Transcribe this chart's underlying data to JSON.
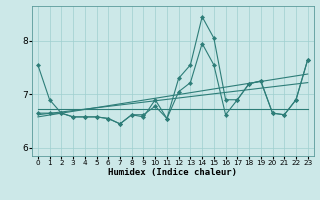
{
  "xlabel": "Humidex (Indice chaleur)",
  "xlim": [
    -0.5,
    23.5
  ],
  "ylim": [
    5.85,
    8.65
  ],
  "yticks": [
    6,
    7,
    8
  ],
  "xticks": [
    0,
    1,
    2,
    3,
    4,
    5,
    6,
    7,
    8,
    9,
    10,
    11,
    12,
    13,
    14,
    15,
    16,
    17,
    18,
    19,
    20,
    21,
    22,
    23
  ],
  "bg_color": "#cce8e8",
  "line_color": "#2d7d78",
  "grid_color": "#9fcfcf",
  "lines": [
    {
      "x": [
        0,
        1,
        2,
        3,
        4,
        5,
        6,
        7,
        8,
        9,
        10,
        11,
        12,
        13,
        14,
        15,
        16,
        17,
        18,
        19,
        20,
        21,
        22,
        23
      ],
      "y": [
        7.55,
        6.9,
        6.65,
        6.58,
        6.58,
        6.58,
        6.55,
        6.45,
        6.62,
        6.58,
        6.9,
        6.55,
        7.3,
        7.55,
        8.45,
        8.05,
        6.9,
        6.9,
        7.2,
        7.25,
        6.65,
        6.62,
        6.9,
        7.65
      ],
      "marker": true
    },
    {
      "x": [
        0,
        1,
        2,
        3,
        4,
        5,
        6,
        7,
        8,
        9,
        10,
        11,
        12,
        13,
        14,
        15,
        16,
        17,
        18,
        19,
        20,
        21,
        22,
        23
      ],
      "y": [
        6.65,
        6.65,
        6.65,
        6.58,
        6.58,
        6.58,
        6.55,
        6.45,
        6.62,
        6.62,
        6.78,
        6.55,
        7.05,
        7.22,
        7.95,
        7.55,
        6.62,
        6.9,
        7.2,
        7.25,
        6.65,
        6.62,
        6.9,
        7.65
      ],
      "marker": true
    },
    {
      "x": [
        0,
        23
      ],
      "y": [
        6.72,
        6.72
      ],
      "marker": false
    },
    {
      "x": [
        0,
        23
      ],
      "y": [
        6.62,
        7.22
      ],
      "marker": false
    },
    {
      "x": [
        0,
        23
      ],
      "y": [
        6.58,
        7.38
      ],
      "marker": false
    }
  ],
  "xlabel_fontsize": 6.5,
  "tick_fontsize_x": 5.2,
  "tick_fontsize_y": 6.5
}
